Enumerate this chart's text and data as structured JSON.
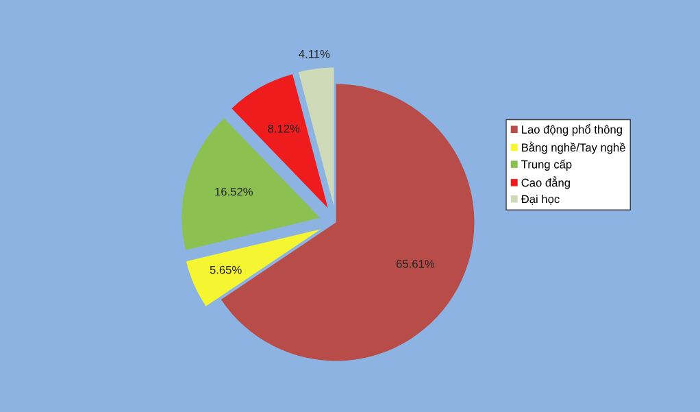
{
  "chart_data": {
    "type": "pie",
    "categories": [
      "Lao động phổ thông",
      "Bằng nghề/Tay nghề",
      "Trung cấp",
      "Cao đẳng",
      "Đại học"
    ],
    "values": [
      65.61,
      5.65,
      16.52,
      8.12,
      4.11
    ],
    "value_labels": [
      "65.61%",
      "5.65%",
      "16.52%",
      "8.12%",
      "4.11%"
    ],
    "colors": [
      "#b84c48",
      "#f5f532",
      "#8cc152",
      "#ee1c1c",
      "#cfdbb8"
    ],
    "legend": "right"
  }
}
